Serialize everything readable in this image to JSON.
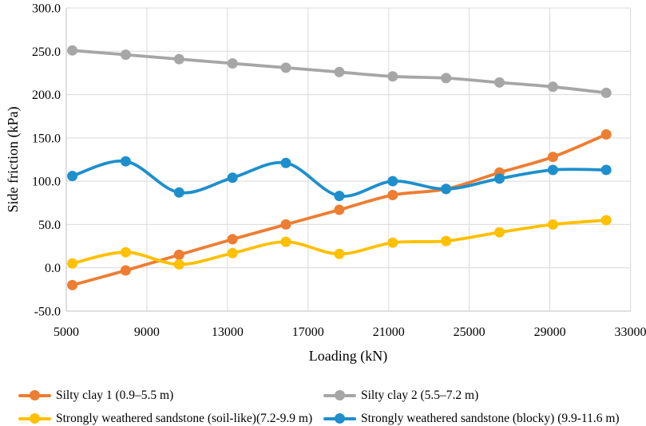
{
  "figure": {
    "background": "#ffffff",
    "grid_color": "#d9d9d9",
    "axis_color": "#bfbfbf",
    "text_color": "#000000"
  },
  "chart_data": {
    "type": "line",
    "title": "",
    "xlabel": "Loading (kN)",
    "ylabel": "Side friction (kPa)",
    "xlim": [
      5000,
      33000
    ],
    "ylim": [
      -50,
      300
    ],
    "x_tick_values": [
      5000,
      9000,
      13000,
      17000,
      21000,
      25000,
      29000,
      33000
    ],
    "x_tick_labels": [
      "5000",
      "9000",
      "13000",
      "17000",
      "21000",
      "25000",
      "29000",
      "33000"
    ],
    "y_tick_values": [
      300,
      250,
      200,
      150,
      100,
      50,
      0,
      -50
    ],
    "y_tick_labels": [
      "300.0",
      "250.0",
      "200.0",
      "150.0",
      "100.0",
      "50.0",
      "0.0",
      "-50.0"
    ],
    "grid": true,
    "smooth": true,
    "marker": "circle",
    "legend_position": "bottom",
    "x": [
      5300,
      7950,
      10600,
      13250,
      15900,
      18550,
      21200,
      23850,
      26500,
      29150,
      31800
    ],
    "series": [
      {
        "name": "Silty clay 1 (0.9–5.5 m)",
        "color": "#ED7D31",
        "values": [
          -20,
          -3,
          15,
          33,
          50,
          67,
          84,
          91,
          110,
          128,
          154
        ]
      },
      {
        "name": "Silty clay 2 (5.5–7.2 m)",
        "color": "#A6A6A6",
        "values": [
          251,
          246,
          241,
          236,
          231,
          226,
          221,
          219,
          214,
          209,
          202
        ]
      },
      {
        "name": "Strongly weathered sandstone (soil-like)(7.2-9.9 m)",
        "color": "#FFC000",
        "values": [
          5,
          18,
          4,
          17,
          30,
          16,
          29,
          31,
          41,
          50,
          55
        ]
      },
      {
        "name": "Strongly weathered sandstone (blocky) (9.9-11.6 m)",
        "color": "#1E8FCC",
        "values": [
          106,
          123,
          87,
          104,
          121,
          83,
          100,
          91,
          103,
          113,
          113
        ]
      }
    ]
  }
}
